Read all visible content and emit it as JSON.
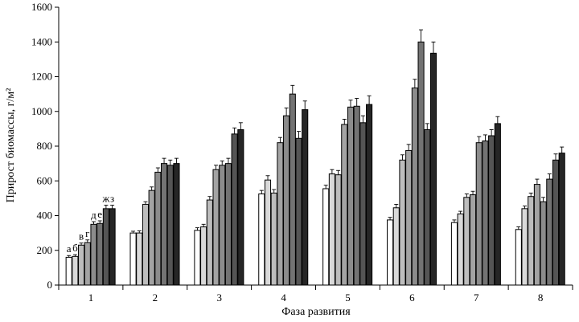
{
  "chart_data": {
    "type": "bar",
    "xlabel": "Фаза развития",
    "ylabel": "Прирост биомассы, г/м²",
    "ylim": [
      0,
      1600
    ],
    "yticks": [
      "0",
      "200",
      "400",
      "600",
      "800",
      "1000",
      "1200",
      "1400",
      "1600"
    ],
    "categories": [
      "1",
      "2",
      "3",
      "4",
      "5",
      "6",
      "7",
      "8"
    ],
    "grid": false,
    "legend": "none",
    "bar_letters": [
      "а",
      "б",
      "в",
      "г",
      "д",
      "е",
      "ж",
      "з"
    ],
    "series_colors": [
      "#ffffff",
      "#d9d9d9",
      "#bdbdbd",
      "#a3a3a3",
      "#8c8c8c",
      "#737373",
      "#555555",
      "#262626"
    ],
    "series": [
      {
        "values": [
          160,
          300,
          315,
          525,
          555,
          375,
          360,
          320
        ],
        "errors": [
          10,
          10,
          15,
          20,
          20,
          15,
          15,
          15
        ]
      },
      {
        "values": [
          165,
          300,
          335,
          605,
          640,
          445,
          410,
          440
        ],
        "errors": [
          10,
          12,
          15,
          25,
          25,
          20,
          15,
          15
        ]
      },
      {
        "values": [
          230,
          465,
          490,
          530,
          635,
          720,
          505,
          510
        ],
        "errors": [
          12,
          15,
          20,
          20,
          25,
          30,
          20,
          20
        ]
      },
      {
        "values": [
          245,
          545,
          665,
          820,
          925,
          775,
          520,
          580
        ],
        "errors": [
          15,
          20,
          25,
          30,
          30,
          35,
          20,
          30
        ]
      },
      {
        "values": [
          350,
          650,
          690,
          975,
          1025,
          1135,
          820,
          480
        ],
        "errors": [
          15,
          25,
          25,
          45,
          40,
          50,
          35,
          25
        ]
      },
      {
        "values": [
          355,
          700,
          700,
          1100,
          1030,
          1400,
          830,
          610
        ],
        "errors": [
          15,
          30,
          30,
          50,
          45,
          70,
          35,
          30
        ]
      },
      {
        "values": [
          440,
          690,
          870,
          845,
          935,
          895,
          860,
          720
        ],
        "errors": [
          20,
          30,
          35,
          40,
          40,
          35,
          35,
          35
        ]
      },
      {
        "values": [
          440,
          700,
          895,
          1010,
          1040,
          1335,
          930,
          760
        ],
        "errors": [
          20,
          30,
          40,
          50,
          50,
          65,
          40,
          35
        ]
      }
    ]
  }
}
